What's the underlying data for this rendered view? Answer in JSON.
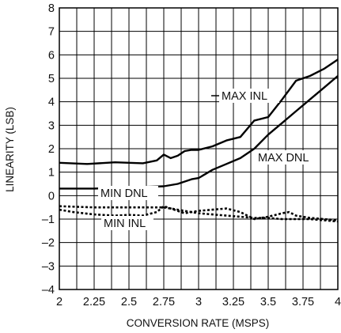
{
  "chart_data": {
    "type": "line",
    "xlabel": "CONVERSION RATE (MSPS)",
    "ylabel": "LINEARITY (LSB)",
    "xlim": [
      2,
      4
    ],
    "ylim": [
      -4,
      8
    ],
    "x_ticks": [
      2,
      2.25,
      2.5,
      2.75,
      3,
      3.25,
      3.5,
      3.75,
      4
    ],
    "x_tick_labels": [
      "2",
      "2.25",
      "2.5",
      "2.75",
      "3",
      "3.25",
      "3.5",
      "3.75",
      "4"
    ],
    "y_ticks": [
      -4,
      -3,
      -2,
      -1,
      0,
      1,
      2,
      3,
      4,
      5,
      6,
      7,
      8
    ],
    "y_tick_labels": [
      "–4",
      "–3",
      "–2",
      "–1",
      "0",
      "1",
      "2",
      "3",
      "4",
      "5",
      "6",
      "7",
      "8"
    ],
    "grid": true,
    "series": [
      {
        "name": "MAX INL",
        "style": "solid",
        "color": "#000000",
        "x": [
          2.0,
          2.2,
          2.4,
          2.6,
          2.7,
          2.75,
          2.8,
          2.85,
          2.9,
          2.95,
          3.0,
          3.1,
          3.2,
          3.3,
          3.4,
          3.5,
          3.6,
          3.7,
          3.8,
          3.9,
          4.0
        ],
        "y": [
          1.4,
          1.35,
          1.42,
          1.38,
          1.5,
          1.75,
          1.6,
          1.7,
          1.9,
          1.95,
          1.95,
          2.1,
          2.35,
          2.5,
          3.2,
          3.35,
          4.1,
          4.9,
          5.1,
          5.4,
          5.8
        ]
      },
      {
        "name": "MAX DNL",
        "style": "solid",
        "color": "#000000",
        "x": [
          2.0,
          2.25,
          2.5,
          2.75,
          2.85,
          2.95,
          3.0,
          3.1,
          3.2,
          3.3,
          3.4,
          3.5,
          3.6,
          3.7,
          3.8,
          3.9,
          4.0
        ],
        "y": [
          0.3,
          0.3,
          0.35,
          0.4,
          0.5,
          0.7,
          0.75,
          1.1,
          1.35,
          1.6,
          2.0,
          2.6,
          3.1,
          3.6,
          4.1,
          4.6,
          5.1
        ]
      },
      {
        "name": "MIN DNL",
        "style": "dotted",
        "color": "#000000",
        "x": [
          2.0,
          2.25,
          2.5,
          2.75,
          2.8,
          2.9,
          3.0,
          3.1,
          3.2,
          3.3,
          3.4,
          3.5,
          3.6,
          3.7,
          3.8,
          3.9,
          4.0
        ],
        "y": [
          -0.45,
          -0.5,
          -0.5,
          -0.5,
          -0.55,
          -0.65,
          -0.75,
          -0.8,
          -0.85,
          -0.9,
          -0.95,
          -0.95,
          -1.0,
          -1.0,
          -1.0,
          -1.05,
          -1.1
        ]
      },
      {
        "name": "MIN INL",
        "style": "dotted",
        "color": "#000000",
        "x": [
          2.0,
          2.1,
          2.25,
          2.4,
          2.5,
          2.6,
          2.7,
          2.75,
          2.8,
          2.9,
          3.0,
          3.1,
          3.2,
          3.3,
          3.4,
          3.5,
          3.6,
          3.65,
          3.7,
          3.8,
          3.9,
          4.0
        ],
        "y": [
          -0.6,
          -0.7,
          -0.8,
          -0.85,
          -0.82,
          -0.85,
          -0.7,
          -0.45,
          -0.55,
          -0.75,
          -0.65,
          -0.6,
          -0.55,
          -0.7,
          -1.0,
          -0.9,
          -0.75,
          -0.7,
          -0.85,
          -0.95,
          -1.0,
          -1.05
        ]
      }
    ],
    "annotations": [
      "MAX INL",
      "MAX DNL",
      "MIN DNL",
      "MIN INL"
    ]
  }
}
